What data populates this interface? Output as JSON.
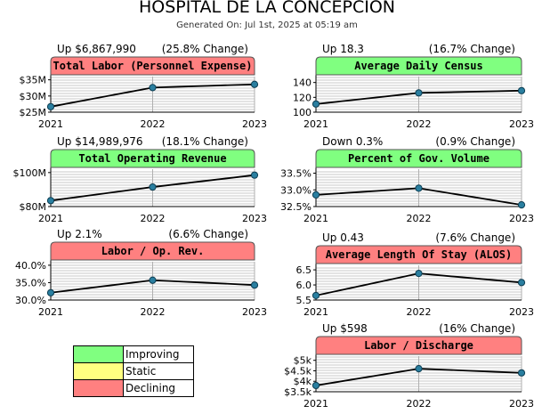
{
  "header": {
    "title": "HOSPITAL DE LA CONCEPCION",
    "generated": "Generated On: Jul 1st, 2025 at 05:19 am"
  },
  "colors": {
    "improving": "#80ff80",
    "static": "#ffff80",
    "declining": "#ff8080",
    "line": "#000000",
    "marker": "#2a7fa0",
    "grid": "#c8c8c8"
  },
  "legend": [
    {
      "label": "Improving",
      "color": "#80ff80"
    },
    {
      "label": "Static",
      "color": "#ffff80"
    },
    {
      "label": "Declining",
      "color": "#ff8080"
    }
  ],
  "chart_data": [
    {
      "type": "line",
      "title": "Total Labor (Personnel Expense)",
      "status": "Declining",
      "change_text": "Up $6,867,990",
      "pct_text": "(25.8% Change)",
      "x": [
        "2021",
        "2022",
        "2023"
      ],
      "y": [
        26.7,
        32.6,
        33.6
      ],
      "ylim": [
        25,
        36
      ],
      "yticks": [
        25,
        30,
        35
      ],
      "ytick_labels": [
        "$25M",
        "$30M",
        "$35M"
      ]
    },
    {
      "type": "line",
      "title": "Average Daily Census",
      "status": "Improving",
      "change_text": "Up 18.3",
      "pct_text": "(16.7% Change)",
      "x": [
        "2021",
        "2022",
        "2023"
      ],
      "y": [
        111,
        126,
        129
      ],
      "ylim": [
        100,
        148
      ],
      "yticks": [
        100,
        120,
        140
      ],
      "ytick_labels": [
        "100",
        "120",
        "140"
      ]
    },
    {
      "type": "line",
      "title": "Total Operating Revenue",
      "status": "Improving",
      "change_text": "Up $14,989,976",
      "pct_text": "(18.1% Change)",
      "x": [
        "2021",
        "2022",
        "2023"
      ],
      "y": [
        83.5,
        91.5,
        98.5
      ],
      "ylim": [
        80,
        102
      ],
      "yticks": [
        80,
        100
      ],
      "ytick_labels": [
        "$80M",
        "$100M"
      ]
    },
    {
      "type": "line",
      "title": "Percent of Gov. Volume",
      "status": "Improving",
      "change_text": "Down 0.3%",
      "pct_text": "(0.9% Change)",
      "x": [
        "2021",
        "2022",
        "2023"
      ],
      "y": [
        32.85,
        33.05,
        32.55
      ],
      "ylim": [
        32.5,
        33.62
      ],
      "yticks": [
        32.5,
        33.0,
        33.5
      ],
      "ytick_labels": [
        "32.5%",
        "33.0%",
        "33.5%"
      ]
    },
    {
      "type": "line",
      "title": "Labor / Op. Rev.",
      "status": "Declining",
      "change_text": "Up 2.1%",
      "pct_text": "(6.6% Change)",
      "x": [
        "2021",
        "2022",
        "2023"
      ],
      "y": [
        32.1,
        35.7,
        34.3
      ],
      "ylim": [
        30,
        41
      ],
      "yticks": [
        30,
        35,
        40
      ],
      "ytick_labels": [
        "30.0%",
        "35.0%",
        "40.0%"
      ]
    },
    {
      "type": "line",
      "title": "Average Length Of Stay (ALOS)",
      "status": "Declining",
      "change_text": "Up 0.43",
      "pct_text": "(7.6% Change)",
      "x": [
        "2021",
        "2022",
        "2023"
      ],
      "y": [
        5.65,
        6.38,
        6.08
      ],
      "ylim": [
        5.5,
        6.65
      ],
      "yticks": [
        5.5,
        6.0,
        6.5
      ],
      "ytick_labels": [
        "5.5",
        "6.0",
        "6.5"
      ]
    },
    {
      "type": "line",
      "title": "Labor / Discharge",
      "status": "Declining",
      "change_text": "Up $598",
      "pct_text": "(16% Change)",
      "x": [
        "2021",
        "2022",
        "2023"
      ],
      "y": [
        3.8,
        4.6,
        4.4
      ],
      "ylim": [
        3.5,
        5.2
      ],
      "yticks": [
        3.5,
        4.0,
        4.5,
        5.0
      ],
      "ytick_labels": [
        "$3.5k",
        "$4k",
        "$4.5k",
        "$5k"
      ]
    }
  ]
}
